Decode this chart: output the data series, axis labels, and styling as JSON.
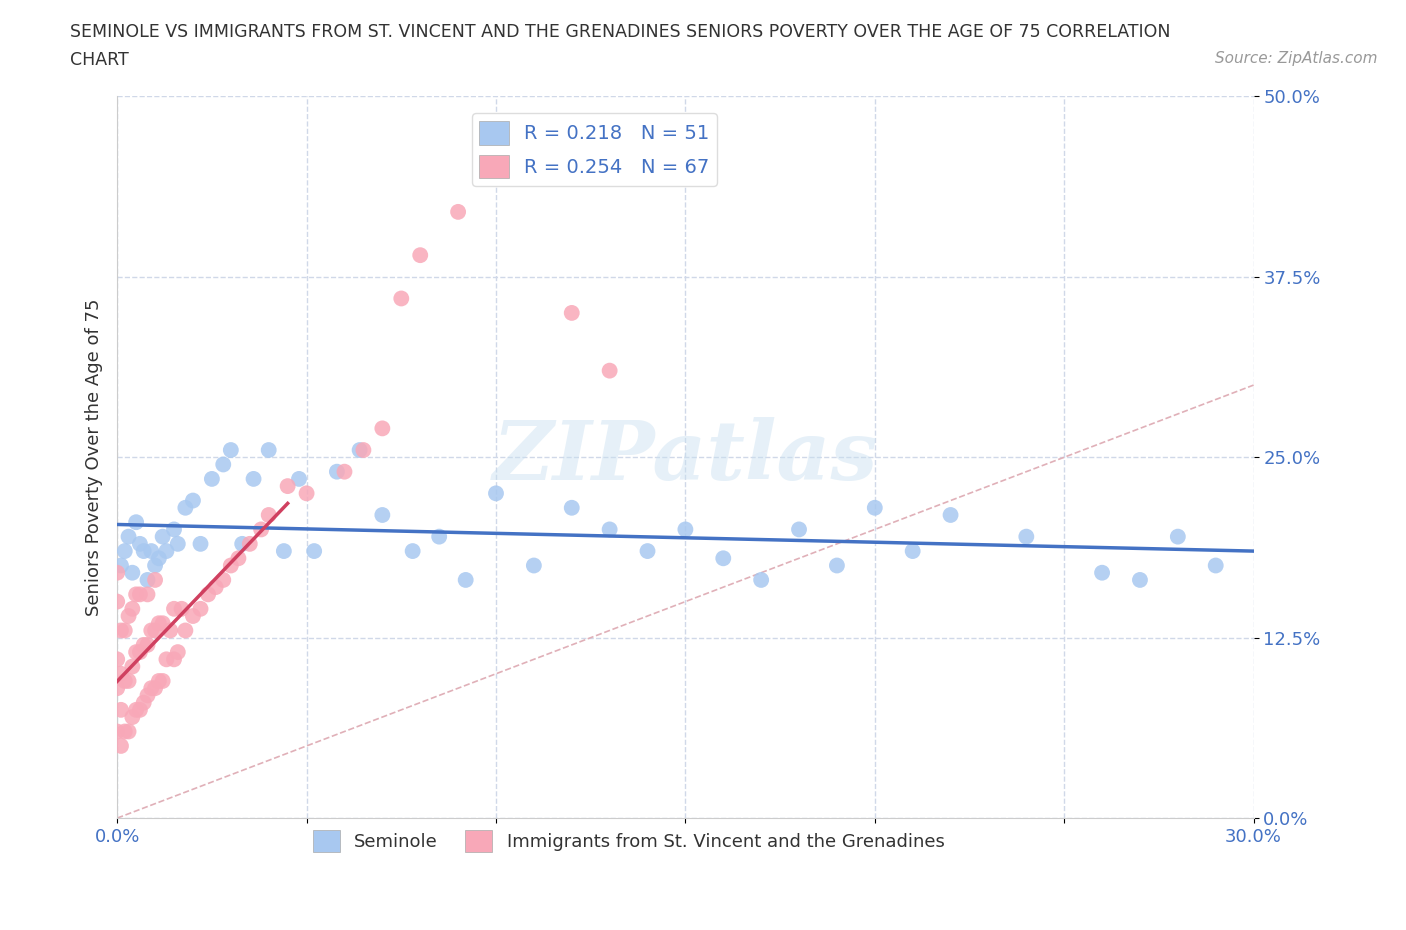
{
  "title_line1": "SEMINOLE VS IMMIGRANTS FROM ST. VINCENT AND THE GRENADINES SENIORS POVERTY OVER THE AGE OF 75 CORRELATION",
  "title_line2": "CHART",
  "source_text": "Source: ZipAtlas.com",
  "ylabel": "Seniors Poverty Over the Age of 75",
  "x_min": 0.0,
  "x_max": 0.3,
  "y_min": 0.0,
  "y_max": 0.5,
  "x_ticks": [
    0.0,
    0.05,
    0.1,
    0.15,
    0.2,
    0.25,
    0.3
  ],
  "x_tick_labels": [
    "0.0%",
    "",
    "",
    "",
    "",
    "",
    "30.0%"
  ],
  "y_ticks": [
    0.0,
    0.125,
    0.25,
    0.375,
    0.5
  ],
  "y_tick_labels": [
    "0.0%",
    "12.5%",
    "25.0%",
    "37.5%",
    "50.0%"
  ],
  "seminole_color": "#a8c8f0",
  "immigrant_color": "#f8a8b8",
  "seminole_R": 0.218,
  "seminole_N": 51,
  "immigrant_R": 0.254,
  "immigrant_N": 67,
  "trendline_seminole_color": "#4472c4",
  "trendline_immigrant_color": "#d04060",
  "diagonal_color": "#e0b0b8",
  "watermark": "ZIPatlas",
  "legend_R_color": "#4472c4",
  "grid_color": "#d0d8e8",
  "seminole_x": [
    0.001,
    0.002,
    0.003,
    0.004,
    0.005,
    0.006,
    0.007,
    0.008,
    0.009,
    0.01,
    0.011,
    0.012,
    0.013,
    0.015,
    0.016,
    0.018,
    0.02,
    0.022,
    0.025,
    0.028,
    0.03,
    0.033,
    0.036,
    0.04,
    0.044,
    0.048,
    0.052,
    0.058,
    0.064,
    0.07,
    0.078,
    0.085,
    0.092,
    0.1,
    0.11,
    0.12,
    0.13,
    0.14,
    0.15,
    0.16,
    0.17,
    0.18,
    0.19,
    0.2,
    0.21,
    0.22,
    0.24,
    0.26,
    0.27,
    0.28,
    0.29
  ],
  "seminole_y": [
    0.175,
    0.185,
    0.195,
    0.17,
    0.205,
    0.19,
    0.185,
    0.165,
    0.185,
    0.175,
    0.18,
    0.195,
    0.185,
    0.2,
    0.19,
    0.215,
    0.22,
    0.19,
    0.235,
    0.245,
    0.255,
    0.19,
    0.235,
    0.255,
    0.185,
    0.235,
    0.185,
    0.24,
    0.255,
    0.21,
    0.185,
    0.195,
    0.165,
    0.225,
    0.175,
    0.215,
    0.2,
    0.185,
    0.2,
    0.18,
    0.165,
    0.2,
    0.175,
    0.215,
    0.185,
    0.21,
    0.195,
    0.17,
    0.165,
    0.195,
    0.175
  ],
  "immigrant_x": [
    0.0,
    0.0,
    0.0,
    0.0,
    0.0,
    0.001,
    0.001,
    0.001,
    0.001,
    0.002,
    0.002,
    0.002,
    0.003,
    0.003,
    0.003,
    0.004,
    0.004,
    0.004,
    0.005,
    0.005,
    0.005,
    0.006,
    0.006,
    0.006,
    0.007,
    0.007,
    0.008,
    0.008,
    0.008,
    0.009,
    0.009,
    0.01,
    0.01,
    0.01,
    0.011,
    0.011,
    0.012,
    0.012,
    0.013,
    0.014,
    0.015,
    0.015,
    0.016,
    0.017,
    0.018,
    0.02,
    0.022,
    0.024,
    0.026,
    0.028,
    0.03,
    0.032,
    0.035,
    0.038,
    0.04,
    0.045,
    0.05,
    0.06,
    0.065,
    0.07,
    0.075,
    0.08,
    0.09,
    0.1,
    0.11,
    0.12,
    0.13
  ],
  "immigrant_y": [
    0.06,
    0.09,
    0.11,
    0.15,
    0.17,
    0.05,
    0.075,
    0.1,
    0.13,
    0.06,
    0.095,
    0.13,
    0.06,
    0.095,
    0.14,
    0.07,
    0.105,
    0.145,
    0.075,
    0.115,
    0.155,
    0.075,
    0.115,
    0.155,
    0.08,
    0.12,
    0.085,
    0.12,
    0.155,
    0.09,
    0.13,
    0.09,
    0.13,
    0.165,
    0.095,
    0.135,
    0.095,
    0.135,
    0.11,
    0.13,
    0.11,
    0.145,
    0.115,
    0.145,
    0.13,
    0.14,
    0.145,
    0.155,
    0.16,
    0.165,
    0.175,
    0.18,
    0.19,
    0.2,
    0.21,
    0.23,
    0.225,
    0.24,
    0.255,
    0.27,
    0.36,
    0.39,
    0.42,
    0.45,
    0.46,
    0.35,
    0.31
  ]
}
